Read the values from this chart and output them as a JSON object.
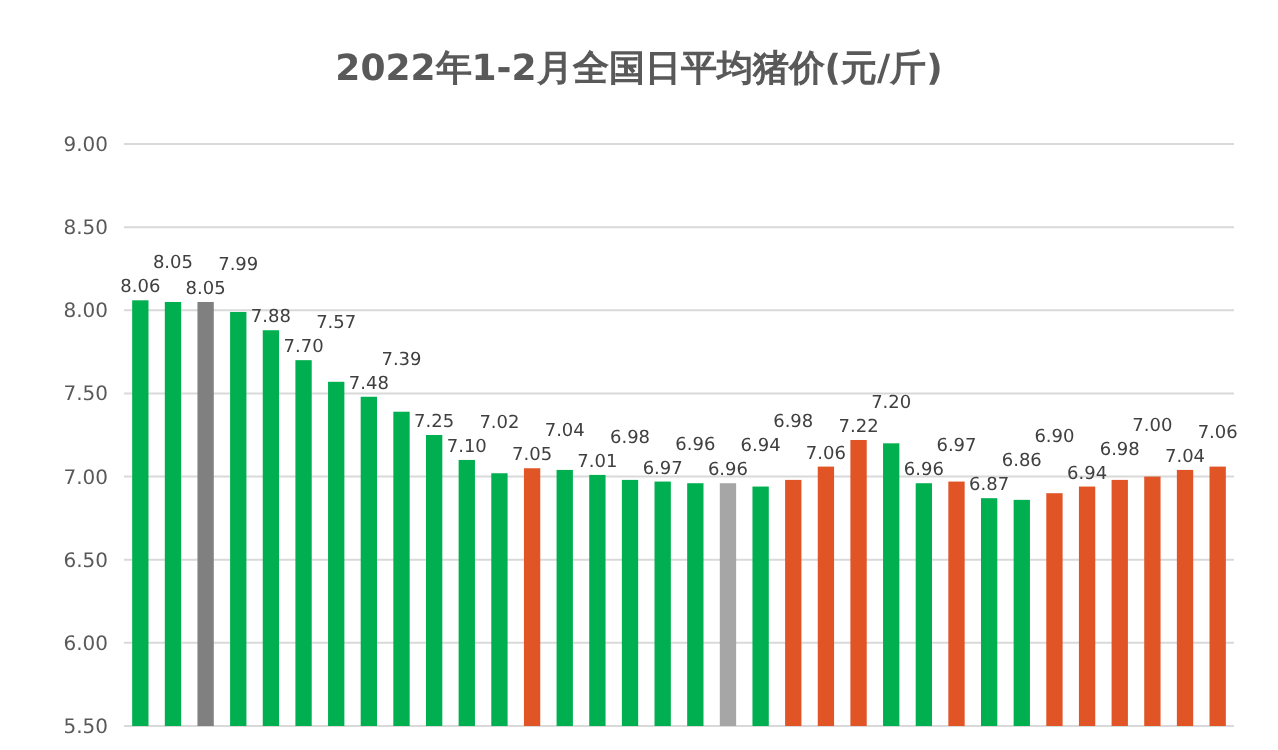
{
  "chart_data": {
    "type": "bar",
    "title": "2022年1-2月全国日平均猪价(元/斤)",
    "categories": [
      null,
      null,
      null,
      null,
      null,
      null,
      null,
      null,
      null,
      null,
      null,
      null,
      null,
      null,
      null,
      null,
      null,
      null,
      null,
      null,
      null,
      null,
      null,
      null,
      null,
      null,
      null,
      null,
      null,
      null,
      null,
      null,
      null,
      null
    ],
    "values": [
      8.06,
      8.05,
      8.05,
      7.99,
      7.88,
      7.7,
      7.57,
      7.48,
      7.39,
      7.25,
      7.1,
      7.02,
      7.05,
      7.04,
      7.01,
      6.98,
      6.97,
      6.96,
      6.96,
      6.94,
      6.98,
      7.06,
      7.22,
      7.2,
      6.96,
      6.97,
      6.87,
      6.86,
      6.9,
      6.94,
      6.98,
      7.0,
      7.04,
      7.06
    ],
    "colors": [
      "#00b050",
      "#00b050",
      "#808080",
      "#00b050",
      "#00b050",
      "#00b050",
      "#00b050",
      "#00b050",
      "#00b050",
      "#00b050",
      "#00b050",
      "#00b050",
      "#e05426",
      "#00b050",
      "#00b050",
      "#00b050",
      "#00b050",
      "#00b050",
      "#a6a6a6",
      "#00b050",
      "#e05426",
      "#e05426",
      "#e05426",
      "#00b050",
      "#00b050",
      "#e05426",
      "#00b050",
      "#00b050",
      "#e05426",
      "#e05426",
      "#e05426",
      "#e05426",
      "#e05426",
      "#e05426"
    ],
    "ylim": [
      5.5,
      9
    ],
    "yticks": [
      {
        "value": 5.5,
        "label": "5.50"
      },
      {
        "value": 6,
        "label": "6.00"
      },
      {
        "value": 6.5,
        "label": "6.50"
      },
      {
        "value": 7,
        "label": "7.00"
      },
      {
        "value": 7.5,
        "label": "7.50"
      },
      {
        "value": 8,
        "label": "8.00"
      },
      {
        "value": 8.5,
        "label": "8.50"
      },
      {
        "value": 9,
        "label": "9.00"
      }
    ],
    "value_labels": [
      "8.06",
      "8.05",
      "8.05",
      "7.99",
      "7.88",
      "7.70",
      "7.57",
      "7.48",
      "7.39",
      "7.25",
      "7.10",
      "7.02",
      "7.05",
      "7.04",
      "7.01",
      "6.98",
      "6.97",
      "6.96",
      "6.96",
      "6.94",
      "6.98",
      "7.06",
      "7.22",
      "7.20",
      "6.96",
      "6.97",
      "6.87",
      "6.86",
      "6.90",
      "6.94",
      "6.98",
      "7.00",
      "7.04",
      "7.06"
    ],
    "grid": "y"
  }
}
